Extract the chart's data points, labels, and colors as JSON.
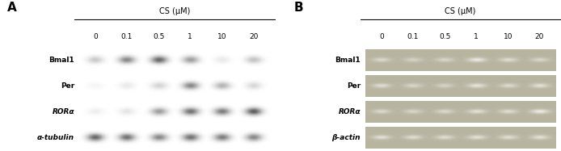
{
  "fig_width": 6.94,
  "fig_height": 1.87,
  "dpi": 100,
  "bg_color": "#ffffff",
  "panel_A_label": "A",
  "panel_B_label": "B",
  "cs_label": "CS (μM)",
  "concentrations": [
    "0",
    "0.1",
    "0.5",
    "1",
    "10",
    "20"
  ],
  "panel_A_rows": [
    "Bmal1",
    "Per",
    "RORα",
    "α-tubulin"
  ],
  "panel_B_rows": [
    "Bmal1",
    "Per",
    "RORα",
    "β-actin"
  ],
  "panel_A_bg": "#d8d8d8",
  "panel_B_bg": "#c8c4a0",
  "panel_A_bands": {
    "Bmal1": [
      0.25,
      0.55,
      0.7,
      0.45,
      0.1,
      0.28
    ],
    "Per": [
      0.05,
      0.1,
      0.2,
      0.55,
      0.35,
      0.18
    ],
    "RORα": [
      0.08,
      0.12,
      0.45,
      0.65,
      0.6,
      0.75
    ],
    "α-tubulin": [
      0.7,
      0.65,
      0.55,
      0.65,
      0.6,
      0.55
    ]
  },
  "panel_B_bands": {
    "Bmal1": [
      0.55,
      0.45,
      0.5,
      0.8,
      0.6,
      0.5
    ],
    "Per": [
      0.6,
      0.5,
      0.45,
      0.7,
      0.55,
      0.65
    ],
    "RORα": [
      0.55,
      0.5,
      0.55,
      0.65,
      0.6,
      0.8
    ],
    "β-actin": [
      0.65,
      0.6,
      0.6,
      0.65,
      0.62,
      0.65
    ]
  },
  "label_fontsize": 6.5,
  "title_fontsize": 7.0,
  "panel_letter_fontsize": 11,
  "conc_fontsize": 6.5
}
